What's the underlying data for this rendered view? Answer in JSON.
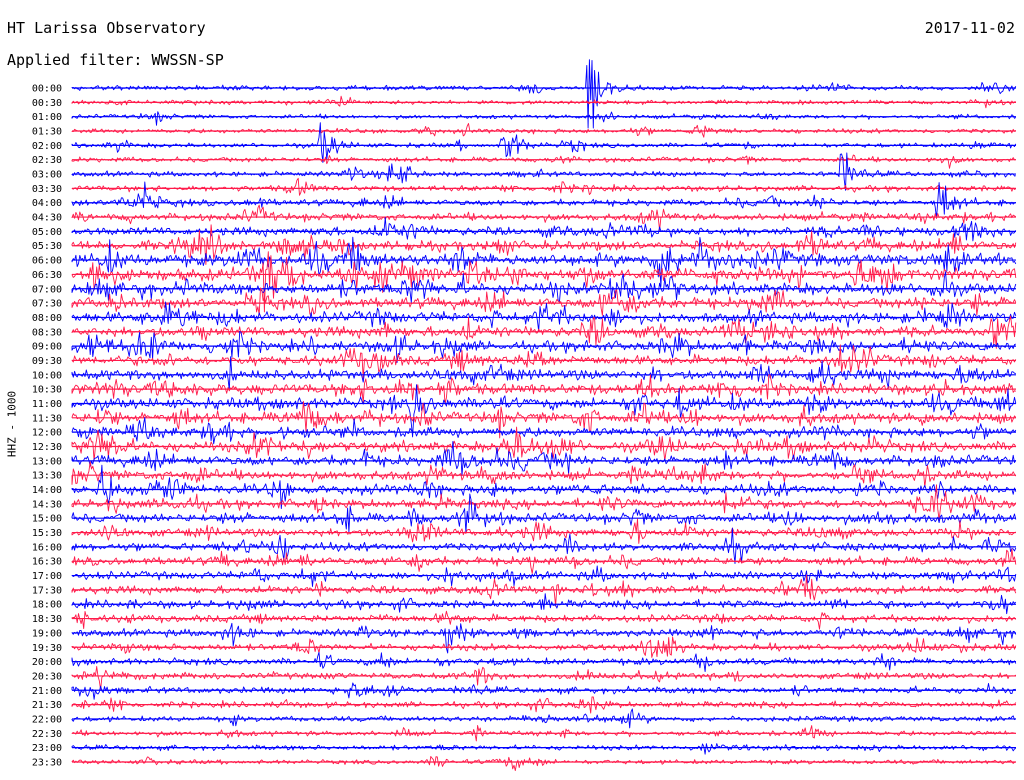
{
  "header": {
    "station": "HT Larissa Observatory",
    "filter": "Applied filter: WWSSN-SP",
    "date": "2017-11-02"
  },
  "chart_data": {
    "type": "line",
    "title": "HT Larissa Observatory",
    "subtitle": "Applied filter: WWSSN-SP",
    "date": "2017-11-02",
    "ylabel": "HHZ - 1000",
    "xlabel": "",
    "row_labels": [
      "00:00",
      "00:30",
      "01:00",
      "01:30",
      "02:00",
      "02:30",
      "03:00",
      "03:30",
      "04:00",
      "04:30",
      "05:00",
      "05:30",
      "06:00",
      "06:30",
      "07:00",
      "07:30",
      "08:00",
      "08:30",
      "09:00",
      "09:30",
      "10:00",
      "10:30",
      "11:00",
      "11:30",
      "12:00",
      "12:30",
      "13:00",
      "13:30",
      "14:00",
      "14:30",
      "15:00",
      "15:30",
      "16:00",
      "16:30",
      "17:00",
      "17:30",
      "18:00",
      "18:30",
      "19:00",
      "19:30",
      "20:00",
      "20:30",
      "21:00",
      "21:30",
      "22:00",
      "22:30",
      "23:00",
      "23:30"
    ],
    "series_colors": [
      "#0000ff",
      "#ff1a4a"
    ],
    "row_activity": [
      0.15,
      0.12,
      0.12,
      0.15,
      0.18,
      0.2,
      0.22,
      0.28,
      0.35,
      0.45,
      0.55,
      0.7,
      0.95,
      1.0,
      0.85,
      0.8,
      0.8,
      0.75,
      0.75,
      0.7,
      0.75,
      0.8,
      0.85,
      0.8,
      0.7,
      0.75,
      0.75,
      0.7,
      0.7,
      0.65,
      0.65,
      0.55,
      0.55,
      0.55,
      0.5,
      0.5,
      0.5,
      0.45,
      0.45,
      0.4,
      0.4,
      0.35,
      0.35,
      0.3,
      0.25,
      0.22,
      0.2,
      0.15
    ],
    "events": [
      {
        "row": 0,
        "minute": 16.4,
        "amp": 4.5
      },
      {
        "row": 4,
        "minute": 7.9,
        "amp": 2.0
      },
      {
        "row": 4,
        "minute": 13.7,
        "amp": 2.2
      },
      {
        "row": 6,
        "minute": 24.4,
        "amp": 2.3
      },
      {
        "row": 8,
        "minute": 2.1,
        "amp": 1.7
      },
      {
        "row": 8,
        "minute": 27.5,
        "amp": 2.0
      },
      {
        "row": 13,
        "minute": 0.6,
        "amp": 1.6
      },
      {
        "row": 22,
        "minute": 10.8,
        "amp": 1.8
      },
      {
        "row": 28,
        "minute": 0.9,
        "amp": 1.5
      },
      {
        "row": 38,
        "minute": 11.9,
        "amp": 1.6
      }
    ]
  }
}
